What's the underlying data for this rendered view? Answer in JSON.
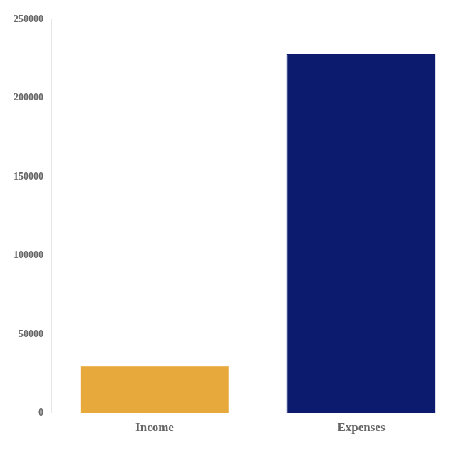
{
  "chart_data": {
    "type": "bar",
    "categories": [
      "Income",
      "Expenses"
    ],
    "values": [
      30000,
      228000
    ],
    "colors": [
      "#E8A93C",
      "#0D1B6E"
    ],
    "ylim": [
      0,
      250000
    ],
    "yticks": [
      0,
      50000,
      100000,
      150000,
      200000,
      250000
    ],
    "grid": false
  }
}
